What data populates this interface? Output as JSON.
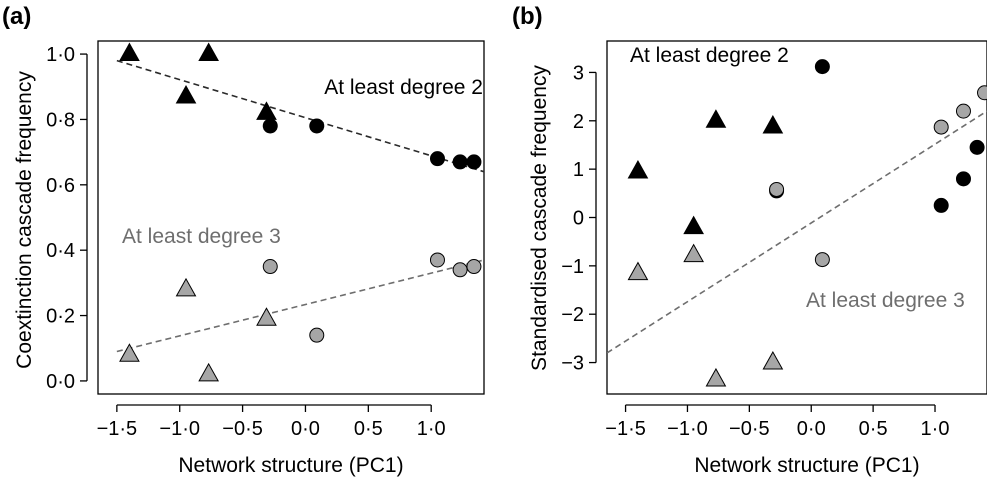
{
  "chart_data": [
    {
      "panel": "(a)",
      "type": "scatter",
      "xlabel": "Network structure (PC1)",
      "ylabel": "Coextinction cascade frequency",
      "xlim": [
        -1.65,
        1.42
      ],
      "ylim": [
        -0.04,
        1.04
      ],
      "xticks": [
        -1.5,
        -1.0,
        -0.5,
        0.0,
        0.5,
        1.0
      ],
      "xtick_labels": [
        "−1·5",
        "−1·0",
        "−0·5",
        "0·0",
        "0·5",
        "1·0"
      ],
      "yticks": [
        0.0,
        0.2,
        0.4,
        0.6,
        0.8,
        1.0
      ],
      "ytick_labels": [
        "0·0",
        "0·2",
        "0·4",
        "0·6",
        "0·8",
        "1·0"
      ],
      "series": [
        {
          "name": "At least degree 2",
          "color": "#000000",
          "line_color": "#2a2a2a",
          "triangles": [
            [
              -1.4,
              1.0
            ],
            [
              -0.95,
              0.87
            ],
            [
              -0.77,
              1.0
            ],
            [
              -0.31,
              0.82
            ]
          ],
          "circles": [
            [
              -0.28,
              0.78
            ],
            [
              0.09,
              0.78
            ],
            [
              1.05,
              0.68
            ],
            [
              1.23,
              0.67
            ],
            [
              1.34,
              0.67
            ]
          ],
          "fit": [
            [
              -1.5,
              0.98
            ],
            [
              1.42,
              0.64
            ]
          ]
        },
        {
          "name": "At least degree 3",
          "color": "#a6a6a6",
          "line_color": "#6e6e6e",
          "triangles": [
            [
              -1.4,
              0.08
            ],
            [
              -0.95,
              0.28
            ],
            [
              -0.77,
              0.02
            ],
            [
              -0.31,
              0.19
            ]
          ],
          "circles": [
            [
              -0.28,
              0.35
            ],
            [
              0.09,
              0.14
            ],
            [
              1.05,
              0.37
            ],
            [
              1.23,
              0.34
            ],
            [
              1.34,
              0.35
            ]
          ],
          "fit": [
            [
              -1.5,
              0.09
            ],
            [
              1.42,
              0.37
            ]
          ]
        }
      ]
    },
    {
      "panel": "(b)",
      "type": "scatter",
      "xlabel": "Network structure (PC1)",
      "ylabel": "Standardised cascade frequency",
      "xlim": [
        -1.65,
        1.42
      ],
      "ylim": [
        -3.65,
        3.65
      ],
      "xticks": [
        -1.5,
        -1.0,
        -0.5,
        0.0,
        0.5,
        1.0
      ],
      "xtick_labels": [
        "−1·5",
        "−1·0",
        "−0·5",
        "0·0",
        "0·5",
        "1·0"
      ],
      "yticks": [
        -3,
        -2,
        -1,
        0,
        1,
        2,
        3
      ],
      "ytick_labels": [
        "−3",
        "−2",
        "−1",
        "0",
        "1",
        "2",
        "3"
      ],
      "series": [
        {
          "name": "At least degree 2",
          "color": "#000000",
          "triangles": [
            [
              -1.4,
              0.95
            ],
            [
              -0.95,
              -0.2
            ],
            [
              -0.77,
              2.0
            ],
            [
              -0.31,
              1.88
            ]
          ],
          "circles": [
            [
              -0.28,
              0.55
            ],
            [
              0.09,
              3.12
            ],
            [
              1.05,
              0.25
            ],
            [
              1.23,
              0.8
            ],
            [
              1.34,
              1.45
            ]
          ]
        },
        {
          "name": "At least degree 3",
          "color": "#a6a6a6",
          "triangles": [
            [
              -1.4,
              -1.15
            ],
            [
              -0.95,
              -0.78
            ],
            [
              -0.77,
              -3.35
            ],
            [
              -0.31,
              -3.0
            ]
          ],
          "circles": [
            [
              -0.28,
              0.58
            ],
            [
              0.09,
              -0.87
            ],
            [
              1.05,
              1.87
            ],
            [
              1.23,
              2.2
            ],
            [
              1.4,
              2.58
            ]
          ]
        }
      ],
      "fit": {
        "color": "#6e6e6e",
        "points": [
          [
            -1.65,
            -2.8
          ],
          [
            1.42,
            2.2
          ]
        ]
      }
    }
  ]
}
